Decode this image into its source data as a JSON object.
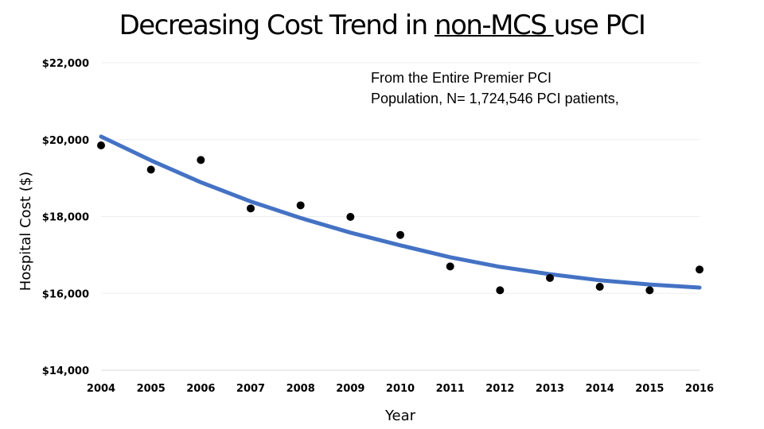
{
  "title": {
    "part1": "Decreasing Cost Trend in ",
    "underlined": "non-MCS ",
    "part2": "use PCI"
  },
  "annotation": {
    "line1": "From the Entire Premier PCI",
    "line2": "Population, N= 1,724,546 PCI patients,"
  },
  "colors": {
    "trend": "#4472C4",
    "points": "#000000",
    "grid": "#eeeeee"
  },
  "chart_data": {
    "type": "scatter",
    "xlabel": "Year",
    "ylabel": "Hospital Cost ($)",
    "ylim": [
      14000,
      22000
    ],
    "yticks": [
      14000,
      16000,
      18000,
      20000,
      22000
    ],
    "ytick_labels": [
      "$14,000",
      "$16,000",
      "$18,000",
      "$20,000",
      "$22,000"
    ],
    "x": [
      2004,
      2005,
      2006,
      2007,
      2008,
      2009,
      2010,
      2011,
      2012,
      2013,
      2014,
      2015,
      2016
    ],
    "y": [
      19850,
      19220,
      19470,
      18210,
      18290,
      17990,
      17520,
      16700,
      16080,
      16400,
      16170,
      16080,
      16620
    ],
    "trendline": {
      "type": "polynomial",
      "x": [
        2004,
        2005,
        2006,
        2007,
        2008,
        2009,
        2010,
        2011,
        2012,
        2013,
        2014,
        2015,
        2016
      ],
      "y": [
        20080,
        19460,
        18890,
        18390,
        17960,
        17580,
        17250,
        16940,
        16690,
        16500,
        16340,
        16230,
        16150
      ]
    },
    "grid": true,
    "legend": "none"
  }
}
